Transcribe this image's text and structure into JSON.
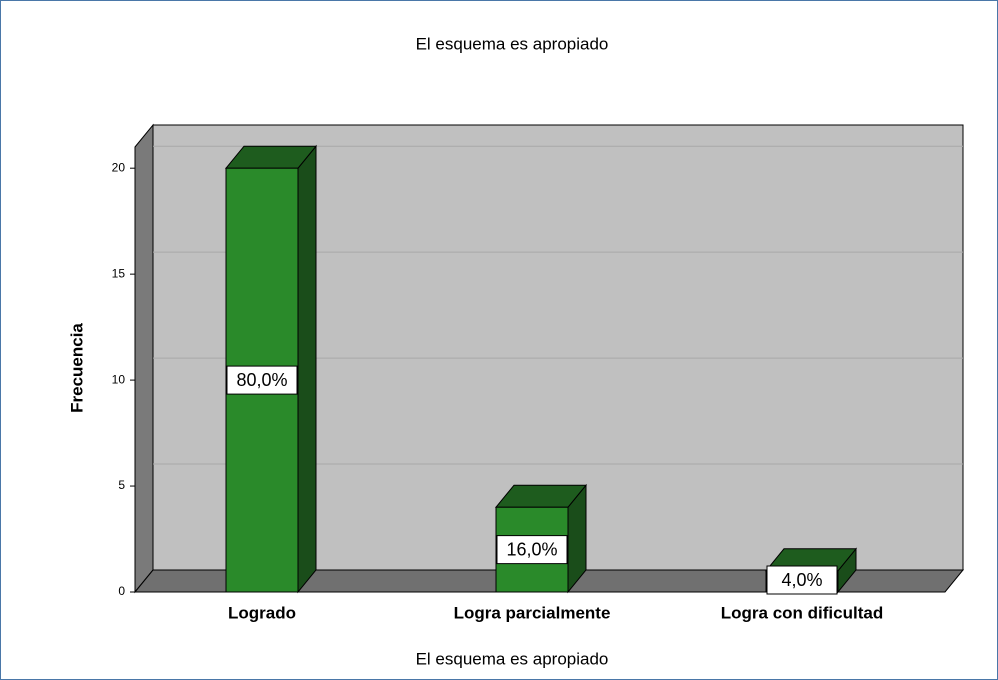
{
  "chart_data": {
    "type": "bar3d",
    "title": "El esquema es apropiado",
    "x_label": "El esquema es apropiado",
    "y_label": "Frecuencia",
    "categories": [
      "Logrado",
      "Logra parcialmente",
      "Logra con dificultad"
    ],
    "values": [
      20,
      4,
      1
    ],
    "percent_values": [
      80,
      16,
      4
    ],
    "percent_labels": [
      "80,0%",
      "16,0%",
      "4,0%"
    ],
    "color": "#2a8a2a",
    "ylim": [
      0,
      21
    ],
    "yticks": [
      0,
      5,
      10,
      15,
      20
    ],
    "grid": true
  }
}
